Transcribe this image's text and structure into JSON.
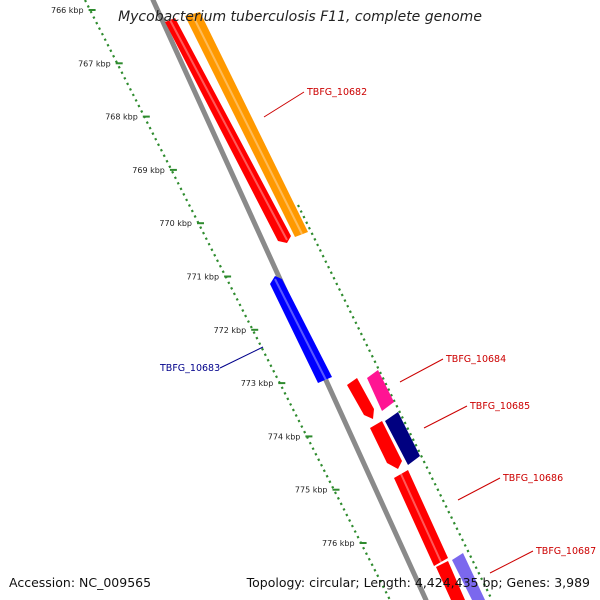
{
  "title": "Mycobacterium tuberculosis F11, complete genome",
  "footer": {
    "accession": "Accession: NC_009565",
    "summary": "Topology: circular; Length: 4,424,435 bp; Genes: 3,989"
  },
  "colors": {
    "backbone": "#8a8a8a",
    "scale": "#2e8b2e",
    "label_red": "#cc0000",
    "label_blue": "#00008b",
    "gene_red": "#ff0000",
    "gene_orange": "#ff9900",
    "gene_blue": "#0000ff",
    "gene_magenta": "#ff1493",
    "gene_navy": "#000080",
    "gene_lavender": "#7b68ee"
  },
  "scale_ticks": [
    "766 kbp",
    "767 kbp",
    "768 kbp",
    "769 kbp",
    "770 kbp",
    "771 kbp",
    "772 kbp",
    "773 kbp",
    "774 kbp",
    "775 kbp",
    "776 kbp"
  ],
  "gene_labels": [
    {
      "text": "TBFG_10682",
      "color": "label_red"
    },
    {
      "text": "TBFG_10683",
      "color": "label_blue"
    },
    {
      "text": "TBFG_10684",
      "color": "label_red"
    },
    {
      "text": "TBFG_10685",
      "color": "label_red"
    },
    {
      "text": "TBFG_10686",
      "color": "label_red"
    },
    {
      "text": "TBFG_10687",
      "color": "label_red"
    }
  ]
}
